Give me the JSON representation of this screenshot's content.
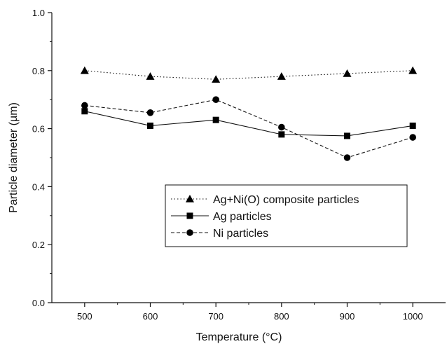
{
  "chart_data": {
    "type": "line",
    "xlabel": "Temperature (°C)",
    "ylabel": "Particle diameter (µm)",
    "x": [
      500,
      600,
      700,
      800,
      900,
      1000
    ],
    "xlim": [
      450,
      1050
    ],
    "ylim": [
      0.0,
      1.0
    ],
    "x_ticks": [
      "500",
      "600",
      "700",
      "800",
      "900",
      "1000"
    ],
    "y_ticks": [
      "0.0",
      "0.2",
      "0.4",
      "0.6",
      "0.8",
      "1.0"
    ],
    "grid": false,
    "legend_position": "center-right",
    "series": [
      {
        "name": "Ag+Ni(O) composite particles",
        "marker": "triangle",
        "line_style": "dotted",
        "values": [
          0.8,
          0.78,
          0.77,
          0.78,
          0.79,
          0.8
        ]
      },
      {
        "name": "Ag particles",
        "marker": "square",
        "line_style": "solid",
        "values": [
          0.66,
          0.61,
          0.63,
          0.58,
          0.575,
          0.61
        ]
      },
      {
        "name": "Ni particles",
        "marker": "circle",
        "line_style": "dashed",
        "values": [
          0.68,
          0.655,
          0.7,
          0.605,
          0.5,
          0.57
        ]
      }
    ],
    "colors": {
      "line": "#111111",
      "marker": "#000000"
    }
  }
}
